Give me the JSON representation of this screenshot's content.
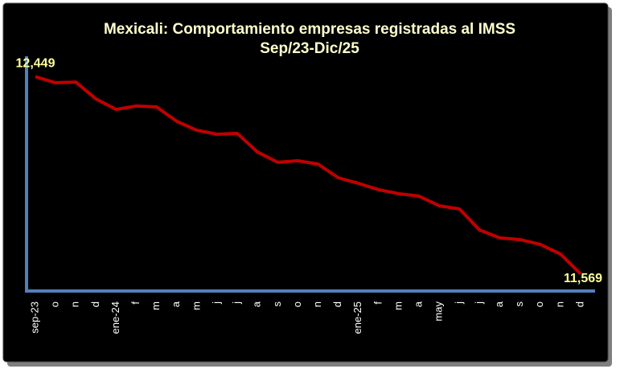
{
  "chart_data": {
    "type": "line",
    "title": "Mexicali: Comportamiento empresas registradas al IMSS",
    "subtitle": "Sep/23-Dic/25",
    "categories": [
      "sep-23",
      "o",
      "n",
      "d",
      "ene-24",
      "f",
      "m",
      "a",
      "m",
      "j",
      "j",
      "a",
      "s",
      "o",
      "n",
      "d",
      "ene-25",
      "f",
      "m",
      "a",
      "may",
      "j",
      "j",
      "a",
      "s",
      "o",
      "n",
      "d"
    ],
    "series": [
      {
        "color": "#c00000",
        "values": [
          12449,
          12422,
          12425,
          12350,
          12303,
          12318,
          12314,
          12250,
          12210,
          12192,
          12196,
          12113,
          12067,
          12074,
          12059,
          11998,
          11973,
          11945,
          11927,
          11916,
          11873,
          11859,
          11765,
          11730,
          11722,
          11701,
          11658,
          11569
        ],
        "value_labels": [
          "12,449",
          null,
          null,
          null,
          null,
          null,
          null,
          null,
          null,
          null,
          null,
          null,
          null,
          null,
          null,
          null,
          null,
          null,
          null,
          null,
          null,
          null,
          null,
          null,
          null,
          null,
          null,
          "11,569"
        ]
      }
    ],
    "ylim": [
      11500,
      12540
    ],
    "axis_color": "#4f81bd",
    "background": "#000000"
  }
}
